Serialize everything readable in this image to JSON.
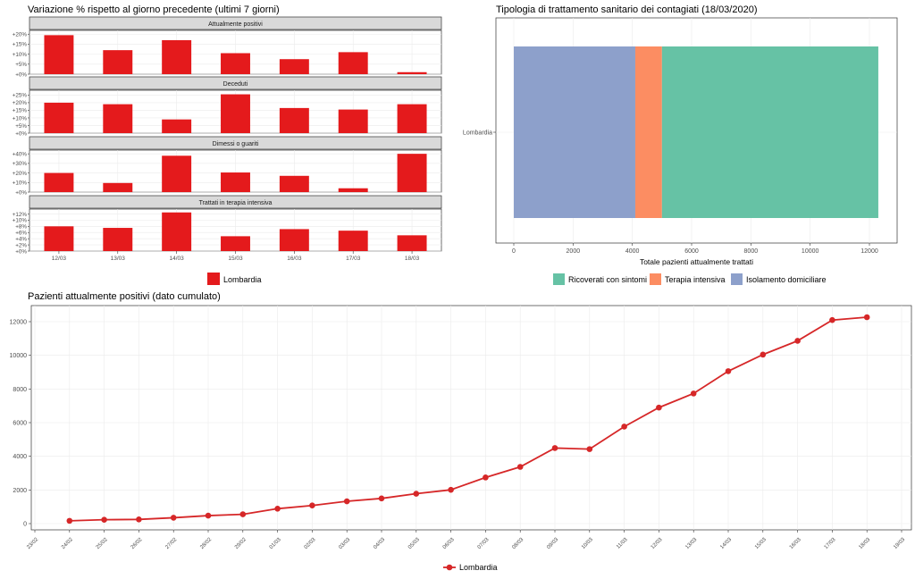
{
  "chart_data": [
    {
      "type": "bar",
      "title": "Variazione % rispetto al giorno precedente (ultimi 7 giorni)",
      "categories": [
        "12/03",
        "13/03",
        "14/03",
        "15/03",
        "16/03",
        "17/03",
        "18/03"
      ],
      "facets": [
        {
          "name": "Attualmente positivi",
          "values": [
            19.5,
            12,
            17,
            10.5,
            7.5,
            11,
            1
          ],
          "yticks": [
            "+20%",
            "+15%",
            "+10%",
            "+5%",
            "+0%"
          ],
          "ylim": [
            0,
            21
          ]
        },
        {
          "name": "Deceduti",
          "values": [
            20,
            19,
            9,
            25.5,
            16.5,
            15.5,
            19
          ],
          "yticks": [
            "+25%",
            "+20%",
            "+15%",
            "+10%",
            "+5%",
            "+0%"
          ],
          "ylim": [
            0,
            27
          ]
        },
        {
          "name": "Dimessi o guariti",
          "values": [
            20,
            9.5,
            38,
            20.5,
            17,
            4,
            40
          ],
          "yticks": [
            "+40%",
            "+30%",
            "+20%",
            "+10%",
            "+0%"
          ],
          "ylim": [
            0,
            42
          ]
        },
        {
          "name": "Trattati in terapia intensiva",
          "values": [
            8,
            7.5,
            12.5,
            4.8,
            7.1,
            6.6,
            5.1
          ],
          "yticks": [
            "+12%",
            "+10%",
            "+8%",
            "+6%",
            "+4%",
            "+2%",
            "+0%"
          ],
          "ylim": [
            0,
            13
          ]
        }
      ],
      "legend": [
        {
          "name": "Lombardia",
          "color": "#e41a1c"
        }
      ]
    },
    {
      "type": "bar",
      "orientation": "horizontal",
      "stacked": true,
      "title": "Tipologia di trattamento sanitario dei contagiati (18/03/2020)",
      "categories": [
        "Lombardia"
      ],
      "series": [
        {
          "name": "Isolamento domiciliare",
          "values": [
            4100
          ],
          "color": "#8da0cb"
        },
        {
          "name": "Terapia intensiva",
          "values": [
            900
          ],
          "color": "#fc8d62"
        },
        {
          "name": "Ricoverati con sintomi",
          "values": [
            7300
          ],
          "color": "#66c2a5"
        }
      ],
      "xlabel": "Totale pazienti attualmente trattati",
      "xticks": [
        "0",
        "2000",
        "4000",
        "6000",
        "8000",
        "10000",
        "12000"
      ],
      "xlim": [
        0,
        12300
      ],
      "legend_order": [
        "Ricoverati con sintomi",
        "Terapia intensiva",
        "Isolamento domiciliare"
      ]
    },
    {
      "type": "line",
      "title": "Pazienti attualmente positivi (dato cumulato)",
      "x": [
        "24/02",
        "25/02",
        "26/02",
        "27/02",
        "28/02",
        "29/02",
        "01/03",
        "02/03",
        "03/03",
        "04/03",
        "05/03",
        "06/03",
        "07/03",
        "08/03",
        "09/03",
        "10/03",
        "11/03",
        "12/03",
        "13/03",
        "14/03",
        "15/03",
        "16/03",
        "17/03",
        "18/03"
      ],
      "xticks": [
        "23/02",
        "24/02",
        "25/02",
        "26/02",
        "27/02",
        "28/02",
        "29/02",
        "01/03",
        "02/03",
        "03/03",
        "04/03",
        "05/03",
        "06/03",
        "07/03",
        "08/03",
        "09/03",
        "10/03",
        "11/03",
        "12/03",
        "13/03",
        "14/03",
        "15/03",
        "16/03",
        "17/03",
        "18/03",
        "19/03"
      ],
      "series": [
        {
          "name": "Lombardia",
          "color": "#d62728",
          "values": [
            166,
            231,
            249,
            349,
            474,
            552,
            887,
            1077,
            1326,
            1497,
            1777,
            2008,
            2742,
            3372,
            4490,
            4427,
            5763,
            6896,
            7732,
            9059,
            10043,
            10861,
            12095,
            12266
          ]
        }
      ],
      "yticks": [
        "0",
        "2000",
        "4000",
        "6000",
        "8000",
        "10000",
        "12000"
      ],
      "ylim": [
        -500,
        12900
      ]
    }
  ]
}
